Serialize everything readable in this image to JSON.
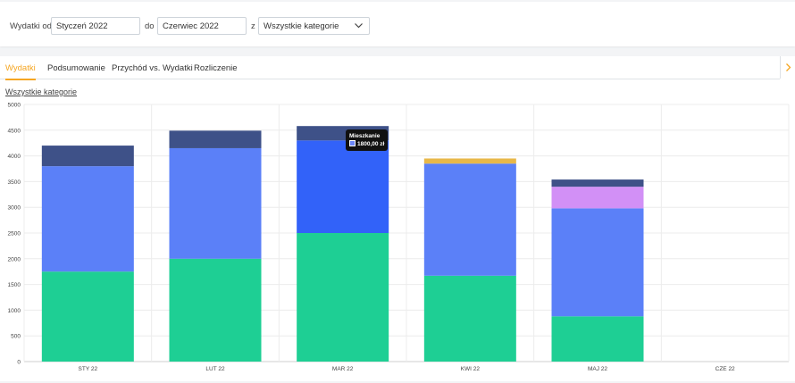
{
  "filters": {
    "from_label": "Wydatki od",
    "from_value": "Styczeń 2022",
    "to_label": "do",
    "to_value": "Czerwiec 2022",
    "category_label": "z",
    "category_value": "Wszystkie kategorie"
  },
  "tabs": [
    {
      "label": "Wydatki",
      "active": true
    },
    {
      "label": "Podsumowanie",
      "active": false
    },
    {
      "label": "Przychód vs. Wydatki",
      "active": false
    },
    {
      "label": "Rozliczenie",
      "active": false
    }
  ],
  "category_link": "Wszystkie kategorie",
  "tooltip": {
    "title": "Mieszkanie",
    "value": "1800,00 zł"
  },
  "chart_data": {
    "type": "bar",
    "stacked": true,
    "categories": [
      "STY 22",
      "LUT 22",
      "MAR 22",
      "KWI 22",
      "MAJ 22",
      "CZE 22"
    ],
    "ylim": [
      0,
      5000
    ],
    "yticks": [
      0,
      500,
      1000,
      1500,
      2000,
      2500,
      3000,
      3500,
      4000,
      4500,
      5000
    ],
    "grid": true,
    "hovered_category": "MAR 22",
    "series": [
      {
        "color": "#1ecf94",
        "values": [
          1750,
          2000,
          2500,
          1670,
          880,
          0
        ]
      },
      {
        "color": "#5b80f8",
        "values": [
          2050,
          2150,
          1800,
          2180,
          2100,
          0
        ]
      },
      {
        "color": "#d290f6",
        "values": [
          0,
          0,
          0,
          0,
          420,
          0
        ]
      },
      {
        "color": "#e8b84a",
        "values": [
          0,
          0,
          0,
          100,
          0,
          0
        ]
      },
      {
        "color": "#3e5188",
        "values": [
          400,
          340,
          280,
          0,
          140,
          0
        ]
      }
    ]
  }
}
